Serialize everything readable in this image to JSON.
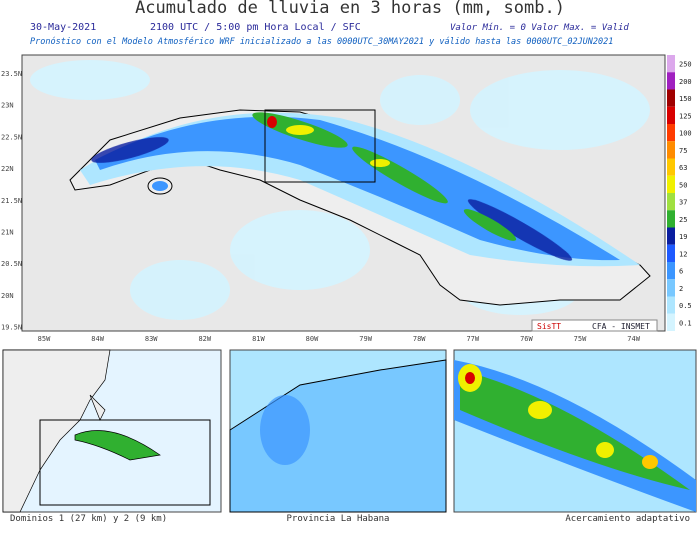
{
  "header": {
    "title": "Acumulado de lluvia en 3 horas (mm, somb.)",
    "date": "30-May-2021",
    "time": "2100 UTC / 5:00 pm Hora Local / SFC",
    "range": "Valor Mín. = 0  Valor Max. = Valid",
    "subtitle": "Pronóstico con el Modelo Atmosférico WRF inicializado a las 0000UTC_30MAY2021 y válido hasta las  0000UTC_02JUN2021"
  },
  "map": {
    "lat_labels": [
      "23.5N",
      "23N",
      "22.5N",
      "22N",
      "21.5N",
      "21N",
      "20.5N",
      "20N",
      "19.5N"
    ],
    "lon_labels": [
      "85W",
      "84W",
      "83W",
      "82W",
      "81W",
      "80W",
      "79W",
      "78W",
      "77W",
      "76W",
      "75W",
      "74W"
    ],
    "logo": [
      "SisTT",
      "CFA - INSMET"
    ]
  },
  "legend": [
    {
      "label": "250",
      "color": "#dca8ec"
    },
    {
      "label": "200",
      "color": "#a020c0"
    },
    {
      "label": "150",
      "color": "#a00000"
    },
    {
      "label": "125",
      "color": "#d80000"
    },
    {
      "label": "100",
      "color": "#ff3c00"
    },
    {
      "label": "75",
      "color": "#ff8c00"
    },
    {
      "label": "63",
      "color": "#ffc800"
    },
    {
      "label": "50",
      "color": "#f0f000"
    },
    {
      "label": "37",
      "color": "#a0e040"
    },
    {
      "label": "25",
      "color": "#30b030"
    },
    {
      "label": "19",
      "color": "#0a1ea0"
    },
    {
      "label": "12",
      "color": "#1e5aff"
    },
    {
      "label": "6",
      "color": "#3c96ff"
    },
    {
      "label": "2",
      "color": "#78c8ff"
    },
    {
      "label": "0.5",
      "color": "#aee6ff"
    },
    {
      "label": "0.1",
      "color": "#d4f4ff"
    }
  ],
  "panels": [
    "Dominios 1 (27 km) y 2 (9 km)",
    "Provincia La Habana",
    "Acercamiento adaptativo"
  ]
}
